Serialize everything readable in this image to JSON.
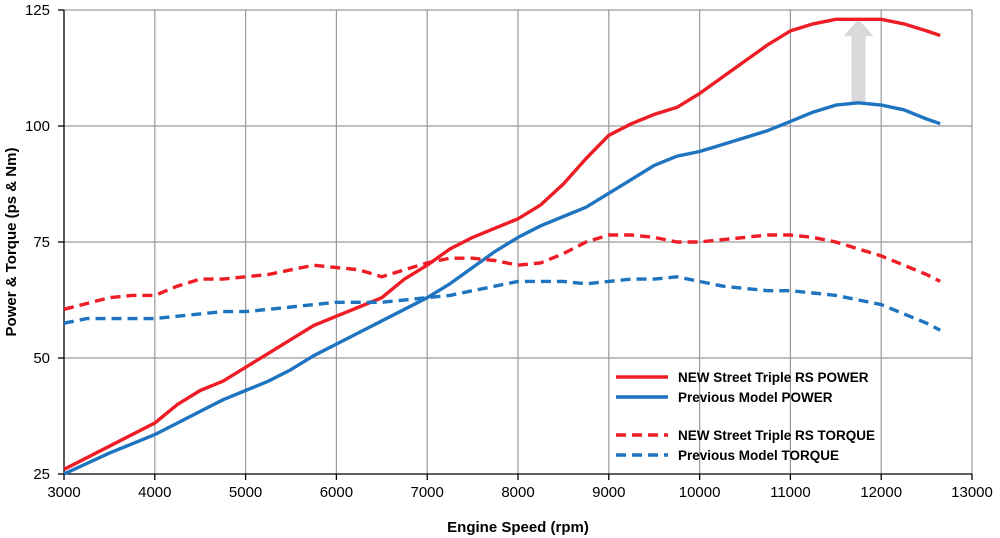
{
  "chart_data": {
    "type": "line",
    "title": "",
    "xlabel": "Engine Speed (rpm)",
    "ylabel": "Power & Torque (ps & Nm)",
    "xlim": [
      3000,
      13000
    ],
    "ylim": [
      25,
      125
    ],
    "xticks": [
      3000,
      4000,
      5000,
      6000,
      7000,
      8000,
      9000,
      10000,
      11000,
      12000,
      13000
    ],
    "yticks": [
      25,
      50,
      75,
      100,
      125
    ],
    "grid": true,
    "legend_position": "bottom-right",
    "annotation": "grey upward arrow between previous and new peak power",
    "series": [
      {
        "name": "NEW Street Triple RS POWER",
        "color": "#ee1c25",
        "dash": "solid",
        "x": [
          3000,
          3500,
          4000,
          4250,
          4500,
          4750,
          5000,
          5250,
          5500,
          5750,
          6000,
          6250,
          6500,
          6750,
          7000,
          7250,
          7500,
          7750,
          8000,
          8250,
          8500,
          8750,
          9000,
          9250,
          9500,
          9750,
          10000,
          10250,
          10500,
          10750,
          11000,
          11250,
          11500,
          11750,
          12000,
          12250,
          12500,
          12650
        ],
        "values": [
          26,
          31,
          36,
          40,
          43,
          45,
          48,
          51,
          54,
          57,
          59,
          61,
          63,
          67,
          70,
          73.5,
          76,
          78,
          80,
          83,
          87.5,
          93,
          98,
          100.5,
          102.5,
          104,
          107,
          110.5,
          114,
          117.5,
          120.5,
          122,
          123,
          123,
          123,
          122,
          120.5,
          119.5
        ]
      },
      {
        "name": "Previous Model POWER",
        "color": "#1f74bf",
        "dash": "solid",
        "x": [
          3000,
          3500,
          4000,
          4250,
          4500,
          4750,
          5000,
          5250,
          5500,
          5750,
          6000,
          6250,
          6500,
          6750,
          7000,
          7250,
          7500,
          7750,
          8000,
          8250,
          8500,
          8750,
          9000,
          9250,
          9500,
          9750,
          10000,
          10250,
          10500,
          10750,
          11000,
          11250,
          11500,
          11750,
          12000,
          12250,
          12500,
          12650
        ],
        "values": [
          25,
          29.5,
          33.5,
          36,
          38.5,
          41,
          43,
          45,
          47.5,
          50.5,
          53,
          55.5,
          58,
          60.5,
          63,
          66,
          69.5,
          73,
          76,
          78.5,
          80.5,
          82.5,
          85.5,
          88.5,
          91.5,
          93.5,
          94.5,
          96,
          97.5,
          99,
          101,
          103,
          104.5,
          105,
          104.5,
          103.5,
          101.5,
          100.5
        ]
      },
      {
        "name": "NEW Street Triple RS TORQUE",
        "color": "#ee1c25",
        "dash": "dashed",
        "x": [
          3000,
          3500,
          3750,
          4000,
          4250,
          4500,
          4750,
          5000,
          5250,
          5500,
          5750,
          6000,
          6250,
          6500,
          6750,
          7000,
          7250,
          7500,
          7750,
          8000,
          8250,
          8500,
          8750,
          9000,
          9250,
          9500,
          9750,
          10000,
          10250,
          10500,
          10750,
          11000,
          11250,
          11500,
          11750,
          12000,
          12250,
          12500,
          12650
        ],
        "values": [
          60.5,
          63,
          63.5,
          63.5,
          65.5,
          67,
          67,
          67.5,
          68,
          69,
          70,
          69.5,
          69,
          67.5,
          69,
          70.5,
          71.5,
          71.5,
          71,
          70,
          70.5,
          72.5,
          75,
          76.5,
          76.5,
          76,
          75,
          75,
          75.5,
          76,
          76.5,
          76.5,
          76,
          75,
          73.5,
          72,
          70,
          68,
          66.5
        ]
      },
      {
        "name": "Previous Model TORQUE",
        "color": "#1f74bf",
        "dash": "dashed",
        "x": [
          3000,
          3250,
          3500,
          3750,
          4000,
          4250,
          4500,
          4750,
          5000,
          5250,
          5500,
          5750,
          6000,
          6250,
          6500,
          6750,
          7000,
          7250,
          7500,
          7750,
          8000,
          8250,
          8500,
          8750,
          9000,
          9250,
          9500,
          9750,
          10000,
          10250,
          10500,
          10750,
          11000,
          11250,
          11500,
          11750,
          12000,
          12250,
          12500,
          12650
        ],
        "values": [
          57.5,
          58.5,
          58.5,
          58.5,
          58.5,
          59,
          59.5,
          60,
          60,
          60.5,
          61,
          61.5,
          62,
          62,
          62,
          62.5,
          63,
          63.5,
          64.5,
          65.5,
          66.5,
          66.5,
          66.5,
          66,
          66.5,
          67,
          67,
          67.5,
          66.5,
          65.5,
          65,
          64.5,
          64.5,
          64,
          63.5,
          62.5,
          61.5,
          59.5,
          57.5,
          56
        ]
      }
    ]
  }
}
